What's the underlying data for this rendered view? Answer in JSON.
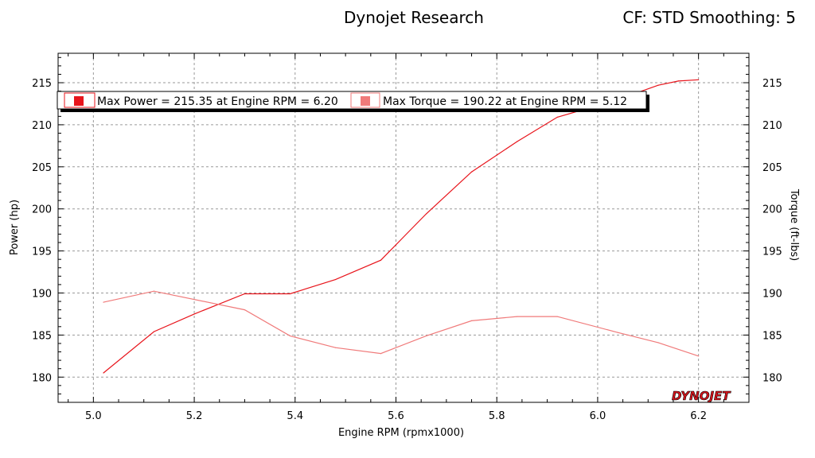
{
  "header": {
    "title": "Dynojet Research",
    "subtitle": "CF: STD Smoothing: 5"
  },
  "logo": {
    "text": "DYNOJET"
  },
  "colors": {
    "power": "#e8141b",
    "torque": "#f07a7a",
    "grid": "#9a9a9a"
  },
  "chart_data": {
    "type": "line",
    "xlabel": "Engine RPM (rpmx1000)",
    "ylabel_left": "Power (hp)",
    "ylabel_right": "Torque (ft-lbs)",
    "xlim": [
      4.93,
      6.3
    ],
    "ylim": [
      177.0,
      218.5
    ],
    "x_ticks": [
      5.0,
      5.2,
      5.4,
      5.6,
      5.8,
      6.0,
      6.2
    ],
    "y_ticks": [
      180,
      185,
      190,
      195,
      200,
      205,
      210,
      215
    ],
    "grid": true,
    "legend": [
      {
        "label": "Max Power = 215.35 at Engine RPM = 6.20",
        "color": "#e8141b"
      },
      {
        "label": "Max Torque = 190.22 at Engine RPM = 5.12",
        "color": "#f07a7a"
      }
    ],
    "series": [
      {
        "key": "power",
        "x": [
          5.02,
          5.12,
          5.2,
          5.3,
          5.39,
          5.48,
          5.57,
          5.66,
          5.75,
          5.84,
          5.92,
          6.04,
          6.12,
          6.16,
          6.2
        ],
        "values": [
          180.5,
          185.4,
          187.5,
          189.9,
          189.9,
          191.6,
          193.9,
          199.4,
          204.4,
          208.0,
          210.9,
          213.0,
          214.7,
          215.2,
          215.35
        ]
      },
      {
        "key": "torque",
        "x": [
          5.02,
          5.12,
          5.3,
          5.39,
          5.48,
          5.57,
          5.66,
          5.75,
          5.84,
          5.92,
          6.04,
          6.12,
          6.2
        ],
        "values": [
          188.9,
          190.22,
          188.0,
          184.9,
          183.5,
          182.8,
          184.9,
          186.7,
          187.2,
          187.2,
          185.3,
          184.1,
          182.5
        ]
      }
    ]
  }
}
